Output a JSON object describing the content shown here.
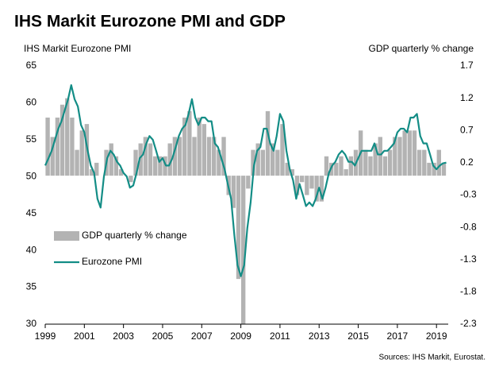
{
  "chart_data": {
    "type": "bar-line",
    "title": "IHS Markit Eurozone PMI and GDP",
    "y_label": "IHS Markit Eurozone PMI",
    "y2_label": "GDP quarterly % change",
    "source": "Sources: IHS Markit, Eurostat.",
    "xlim": [
      1999,
      2019.6
    ],
    "xticks": [
      1999,
      2001,
      2003,
      2005,
      2007,
      2009,
      2011,
      2013,
      2015,
      2017,
      2019
    ],
    "ylim": [
      30,
      65
    ],
    "yticks": [
      30,
      35,
      40,
      45,
      50,
      55,
      60,
      65
    ],
    "y2lim": [
      -2.3,
      1.7
    ],
    "y2ticks": [
      -2.3,
      -1.8,
      -1.3,
      -0.8,
      -0.3,
      0.2,
      0.7,
      1.2,
      1.7
    ],
    "legend": "left",
    "series": [
      {
        "name": "GDP quarterly % change",
        "type": "bar",
        "axis": "y2",
        "color": "#b3b3b3",
        "x": [
          1999,
          1999.25,
          1999.5,
          1999.75,
          2000,
          2000.25,
          2000.5,
          2000.75,
          2001,
          2001.25,
          2001.5,
          2001.75,
          2002,
          2002.25,
          2002.5,
          2002.75,
          2003,
          2003.25,
          2003.5,
          2003.75,
          2004,
          2004.25,
          2004.5,
          2004.75,
          2005,
          2005.25,
          2005.5,
          2005.75,
          2006,
          2006.25,
          2006.5,
          2006.75,
          2007,
          2007.25,
          2007.5,
          2007.75,
          2008,
          2008.25,
          2008.5,
          2008.75,
          2009,
          2009.25,
          2009.5,
          2009.75,
          2010,
          2010.25,
          2010.5,
          2010.75,
          2011,
          2011.25,
          2011.5,
          2011.75,
          2012,
          2012.25,
          2012.5,
          2012.75,
          2013,
          2013.25,
          2013.5,
          2013.75,
          2014,
          2014.25,
          2014.5,
          2014.75,
          2015,
          2015.25,
          2015.5,
          2015.75,
          2016,
          2016.25,
          2016.5,
          2016.75,
          2017,
          2017.25,
          2017.5,
          2017.75,
          2018,
          2018.25,
          2018.5,
          2018.75,
          2019,
          2019.25
        ],
        "values": [
          0.9,
          0.6,
          0.9,
          1.1,
          1.2,
          0.9,
          0.4,
          0.7,
          0.8,
          0.1,
          0.2,
          0.0,
          0.4,
          0.5,
          0.3,
          0.1,
          0.0,
          -0.1,
          0.4,
          0.5,
          0.6,
          0.5,
          0.3,
          0.3,
          0.3,
          0.5,
          0.6,
          0.6,
          0.9,
          1.0,
          0.6,
          0.9,
          0.8,
          0.6,
          0.6,
          0.4,
          0.6,
          -0.3,
          -0.5,
          -1.6,
          -2.3,
          -0.2,
          0.4,
          0.5,
          0.4,
          1.0,
          0.5,
          0.4,
          0.8,
          0.2,
          0.1,
          -0.3,
          -0.1,
          -0.3,
          -0.2,
          -0.4,
          -0.4,
          0.3,
          0.2,
          0.2,
          0.3,
          0.1,
          0.3,
          0.4,
          0.7,
          0.4,
          0.3,
          0.5,
          0.6,
          0.3,
          0.4,
          0.6,
          0.6,
          0.7,
          0.7,
          0.7,
          0.4,
          0.4,
          0.2,
          0.2,
          0.4,
          0.2
        ]
      },
      {
        "name": "Eurozone PMI",
        "type": "line",
        "axis": "y",
        "color": "#138d86",
        "x": [
          1999,
          1999.17,
          1999.33,
          1999.5,
          1999.67,
          1999.83,
          2000,
          2000.17,
          2000.33,
          2000.5,
          2000.67,
          2000.83,
          2001,
          2001.17,
          2001.33,
          2001.5,
          2001.67,
          2001.83,
          2002,
          2002.17,
          2002.33,
          2002.5,
          2002.67,
          2002.83,
          2003,
          2003.17,
          2003.33,
          2003.5,
          2003.67,
          2003.83,
          2004,
          2004.17,
          2004.33,
          2004.5,
          2004.67,
          2004.83,
          2005,
          2005.17,
          2005.33,
          2005.5,
          2005.67,
          2005.83,
          2006,
          2006.17,
          2006.33,
          2006.5,
          2006.67,
          2006.83,
          2007,
          2007.17,
          2007.33,
          2007.5,
          2007.67,
          2007.83,
          2008,
          2008.17,
          2008.33,
          2008.5,
          2008.67,
          2008.83,
          2009,
          2009.17,
          2009.33,
          2009.5,
          2009.67,
          2009.83,
          2010,
          2010.17,
          2010.33,
          2010.5,
          2010.67,
          2010.83,
          2011,
          2011.17,
          2011.33,
          2011.5,
          2011.67,
          2011.83,
          2012,
          2012.17,
          2012.33,
          2012.5,
          2012.67,
          2012.83,
          2013,
          2013.17,
          2013.33,
          2013.5,
          2013.67,
          2013.83,
          2014,
          2014.17,
          2014.33,
          2014.5,
          2014.67,
          2014.83,
          2015,
          2015.17,
          2015.33,
          2015.5,
          2015.67,
          2015.83,
          2016,
          2016.17,
          2016.33,
          2016.5,
          2016.67,
          2016.83,
          2017,
          2017.17,
          2017.33,
          2017.5,
          2017.67,
          2017.83,
          2018,
          2018.17,
          2018.33,
          2018.5,
          2018.67,
          2018.83,
          2019,
          2019.17,
          2019.33,
          2019.5
        ],
        "values": [
          51.5,
          52.5,
          53.5,
          55.0,
          56.5,
          57.5,
          59.0,
          60.5,
          62.4,
          60.5,
          59.5,
          57.0,
          56.0,
          53.5,
          51.5,
          50.5,
          47.0,
          45.8,
          50.0,
          52.5,
          53.5,
          53.0,
          52.0,
          51.5,
          50.5,
          50.0,
          48.5,
          48.8,
          50.5,
          52.5,
          53.0,
          54.5,
          55.5,
          55.0,
          53.5,
          52.0,
          52.5,
          51.5,
          51.5,
          52.5,
          54.0,
          55.5,
          56.5,
          57.0,
          58.5,
          60.5,
          58.0,
          57.0,
          58.0,
          58.0,
          57.5,
          57.5,
          54.5,
          54.0,
          52.5,
          51.0,
          49.0,
          47.0,
          42.0,
          38.0,
          36.5,
          38.0,
          43.0,
          46.5,
          51.5,
          53.5,
          54.0,
          56.5,
          56.5,
          54.5,
          53.5,
          55.5,
          58.5,
          57.5,
          53.5,
          51.0,
          49.5,
          47.0,
          49.0,
          47.5,
          46.0,
          46.5,
          46.0,
          47.0,
          48.5,
          47.0,
          48.5,
          50.5,
          51.5,
          52.0,
          53.0,
          53.5,
          53.0,
          52.0,
          52.0,
          51.5,
          52.5,
          53.5,
          53.5,
          53.5,
          53.5,
          54.5,
          53.0,
          53.0,
          53.5,
          53.5,
          54.0,
          54.5,
          56.0,
          56.5,
          56.5,
          56.0,
          58.0,
          58.0,
          58.5,
          55.5,
          54.5,
          54.5,
          53.0,
          51.5,
          51.0,
          51.5,
          51.8,
          51.9
        ]
      }
    ]
  }
}
